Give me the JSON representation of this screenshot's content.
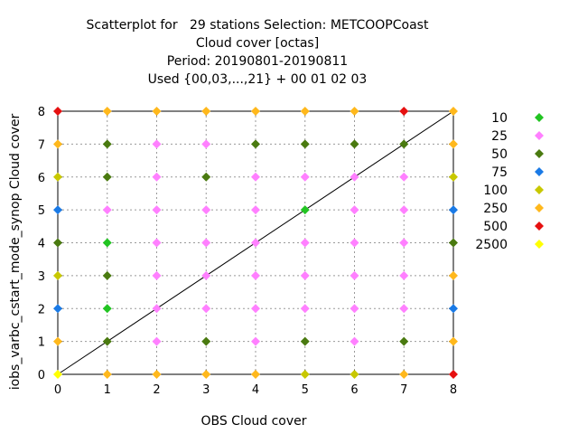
{
  "chart_data": {
    "type": "scatter",
    "title_lines": [
      "Scatterplot for   29 stations Selection: METCOOPCoast",
      "Cloud cover [octas]",
      "Period: 20190801-20190811",
      "Used {00,03,...,21} + 00 01 02 03"
    ],
    "xlabel": "OBS Cloud cover",
    "ylabel": "iobs_varbc_cstart_mode_synop Cloud cover",
    "xlim": [
      0,
      8
    ],
    "ylim": [
      0,
      8
    ],
    "xticks": [
      "0",
      "1",
      "2",
      "3",
      "4",
      "5",
      "6",
      "7",
      "8"
    ],
    "yticks": [
      "0",
      "1",
      "2",
      "3",
      "4",
      "5",
      "6",
      "7",
      "8"
    ],
    "grid": true,
    "diagonal_line": true,
    "legend_position": "right",
    "legend": [
      {
        "label": "10",
        "color": "#22c422"
      },
      {
        "label": "25",
        "color": "#ff80ff"
      },
      {
        "label": "50",
        "color": "#4a7a10"
      },
      {
        "label": "75",
        "color": "#1a7ae6"
      },
      {
        "label": "100",
        "color": "#c8c800"
      },
      {
        "label": "250",
        "color": "#ffb81c"
      },
      {
        "label": "500",
        "color": "#e61010"
      },
      {
        "label": "2500",
        "color": "#ffff00"
      }
    ],
    "grid_values": [
      [
        "2500",
        "250",
        "250",
        "250",
        "250",
        "100",
        "100",
        "250",
        "500"
      ],
      [
        "250",
        "50",
        "25",
        "50",
        "25",
        "50",
        "25",
        "50",
        "250"
      ],
      [
        "75",
        "10",
        "25",
        "25",
        "25",
        "25",
        "25",
        "25",
        "75"
      ],
      [
        "100",
        "50",
        "25",
        "25",
        "25",
        "25",
        "25",
        "25",
        "250"
      ],
      [
        "50",
        "10",
        "25",
        "25",
        "25",
        "25",
        "25",
        "25",
        "50"
      ],
      [
        "75",
        "25",
        "25",
        "25",
        "25",
        "10",
        "25",
        "25",
        "75"
      ],
      [
        "100",
        "50",
        "25",
        "50",
        "25",
        "25",
        "25",
        "25",
        "100"
      ],
      [
        "250",
        "50",
        "25",
        "25",
        "50",
        "50",
        "50",
        "50",
        "250"
      ],
      [
        "500",
        "250",
        "250",
        "250",
        "250",
        "250",
        "250",
        "500",
        "250"
      ]
    ]
  }
}
